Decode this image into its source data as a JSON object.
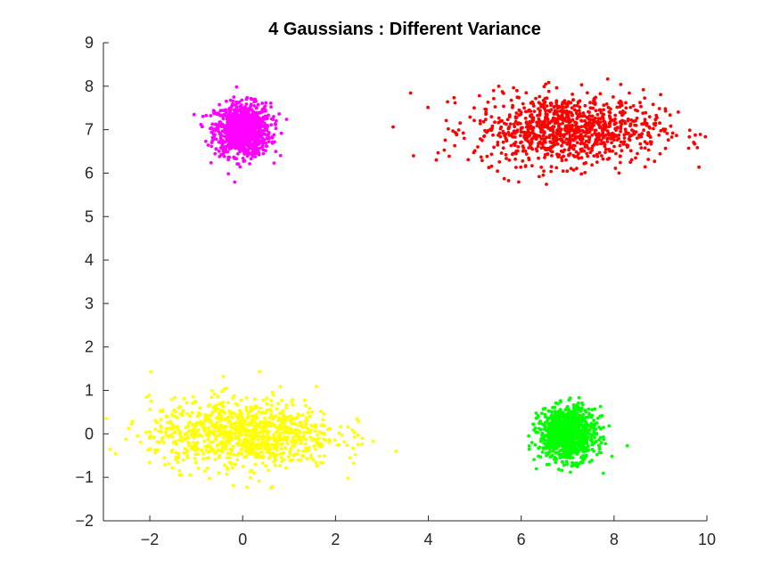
{
  "chart_data": {
    "type": "scatter",
    "title": "4 Gaussians : Different Variance",
    "xlabel": "",
    "ylabel": "",
    "xlim": [
      -3,
      10
    ],
    "ylim": [
      -2,
      9
    ],
    "xticks": [
      -2,
      0,
      2,
      4,
      6,
      8,
      10
    ],
    "yticks": [
      -2,
      -1,
      0,
      1,
      2,
      3,
      4,
      5,
      6,
      7,
      8,
      9
    ],
    "grid": false,
    "legend": "none",
    "axis_color": "#262626",
    "series": [
      {
        "color": "#ff00ff",
        "center": [
          0,
          7
        ],
        "std": [
          0.3,
          0.3
        ],
        "n": 1000
      },
      {
        "color": "#ff0000",
        "center": [
          7,
          7
        ],
        "std": [
          1.0,
          0.4
        ],
        "n": 1000
      },
      {
        "color": "#ffff00",
        "center": [
          0,
          0
        ],
        "std": [
          1.0,
          0.4
        ],
        "n": 1000
      },
      {
        "color": "#00ff00",
        "center": [
          7,
          0
        ],
        "std": [
          0.3,
          0.3
        ],
        "n": 1000
      }
    ]
  }
}
